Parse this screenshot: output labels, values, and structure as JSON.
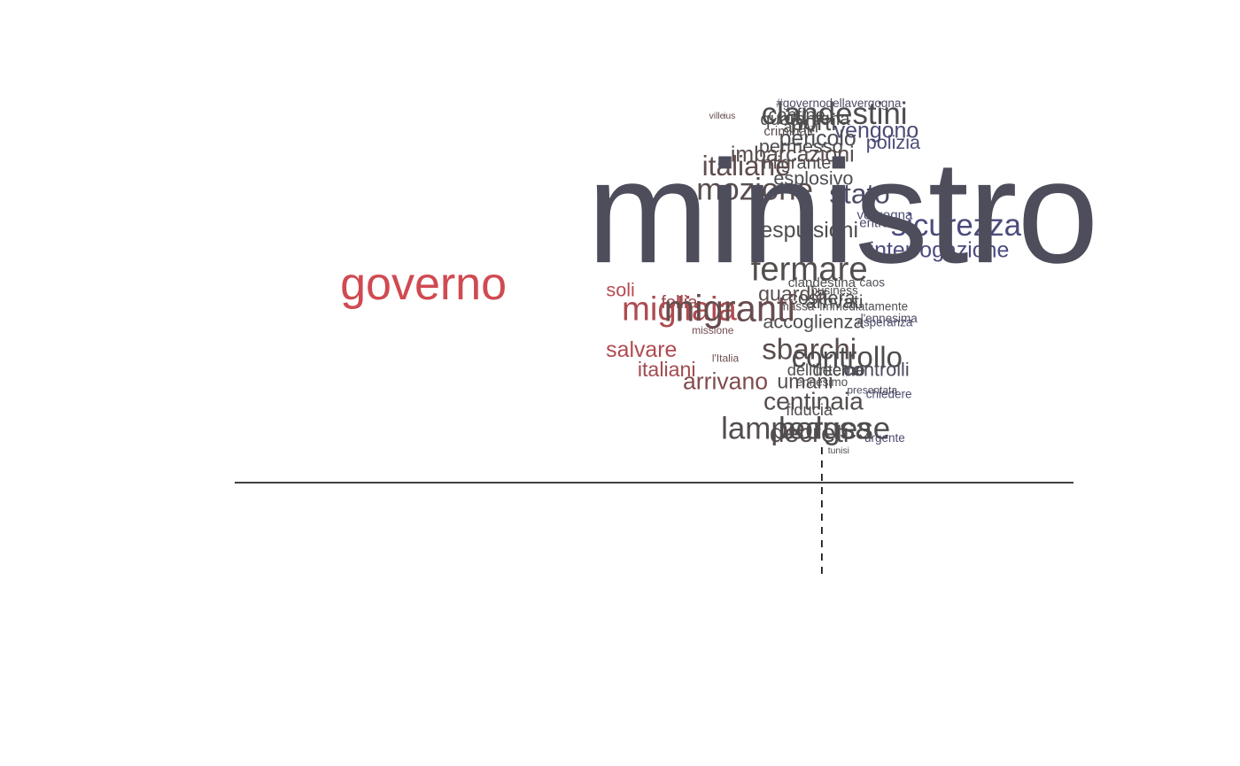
{
  "chart_data": {
    "type": "scatter",
    "subtype": "word-cloud-scatter",
    "title": "",
    "xlabel": "",
    "ylabel": "",
    "xlim": [
      -1,
      1
    ],
    "ylim": [
      -0.3,
      1
    ],
    "grid": false,
    "reference_lines": {
      "horizontal_y": 0,
      "vertical_dashed_x": 0.4
    },
    "color_scale": {
      "low": "#d04a52",
      "mid": "#4d4d4d",
      "high": "#4b4b86"
    },
    "points": [
      {
        "word": "ministro",
        "x": 0.45,
        "y": 0.65,
        "freq": 100,
        "tone": 0.25
      },
      {
        "word": "governo",
        "x": -0.55,
        "y": 0.49,
        "freq": 28,
        "tone": -1
      },
      {
        "word": "clandestini",
        "x": 0.43,
        "y": 0.92,
        "freq": 18,
        "tone": 0.05
      },
      {
        "word": "sicurezza",
        "x": 0.72,
        "y": 0.64,
        "freq": 18,
        "tone": 0.85
      },
      {
        "word": "migranti",
        "x": 0.18,
        "y": 0.43,
        "freq": 22,
        "tone": -0.2
      },
      {
        "word": "migliaia",
        "x": 0.06,
        "y": 0.43,
        "freq": 20,
        "tone": -0.75
      },
      {
        "word": "fermare",
        "x": 0.37,
        "y": 0.53,
        "freq": 20,
        "tone": -0.05
      },
      {
        "word": "sbarchi",
        "x": 0.37,
        "y": 0.33,
        "freq": 17,
        "tone": -0.1
      },
      {
        "word": "controllo",
        "x": 0.46,
        "y": 0.31,
        "freq": 17,
        "tone": 0.05
      },
      {
        "word": "lampedusa",
        "x": 0.34,
        "y": 0.13,
        "freq": 18,
        "tone": -0.05
      },
      {
        "word": "borgese",
        "x": 0.43,
        "y": 0.13,
        "freq": 18,
        "tone": 0.05
      },
      {
        "word": "mozione",
        "x": 0.24,
        "y": 0.73,
        "freq": 18,
        "tone": -0.1
      },
      {
        "word": "italiane",
        "x": 0.22,
        "y": 0.79,
        "freq": 16,
        "tone": -0.15
      },
      {
        "word": "salvare",
        "x": -0.03,
        "y": 0.33,
        "freq": 12,
        "tone": -0.75
      },
      {
        "word": "italiani",
        "x": 0.03,
        "y": 0.28,
        "freq": 11,
        "tone": -0.65
      },
      {
        "word": "interrogazione",
        "x": 0.68,
        "y": 0.58,
        "freq": 12,
        "tone": 0.9
      },
      {
        "word": "vengono",
        "x": 0.53,
        "y": 0.88,
        "freq": 12,
        "tone": 0.7
      },
      {
        "word": "polizia",
        "x": 0.57,
        "y": 0.85,
        "freq": 10,
        "tone": 0.8
      },
      {
        "word": "soli",
        "x": -0.08,
        "y": 0.48,
        "freq": 10,
        "tone": -0.8
      },
      {
        "word": "follia",
        "x": 0.06,
        "y": 0.45,
        "freq": 9,
        "tone": -0.6
      },
      {
        "word": "arrivano",
        "x": 0.17,
        "y": 0.25,
        "freq": 13,
        "tone": -0.4
      },
      {
        "word": "centinaia",
        "x": 0.38,
        "y": 0.2,
        "freq": 14,
        "tone": -0.05
      },
      {
        "word": "decreti",
        "x": 0.37,
        "y": 0.12,
        "freq": 15,
        "tone": -0.05
      },
      {
        "word": "pericolo",
        "x": 0.39,
        "y": 0.86,
        "freq": 12,
        "tone": 0.1
      },
      {
        "word": "porti",
        "x": 0.38,
        "y": 0.9,
        "freq": 13,
        "tone": -0.05
      },
      {
        "word": "quarantena",
        "x": 0.36,
        "y": 0.91,
        "freq": 9,
        "tone": 0
      },
      {
        "word": "confine",
        "x": 0.34,
        "y": 0.92,
        "freq": 9,
        "tone": 0
      },
      {
        "word": "arrivi",
        "x": 0.35,
        "y": 0.89,
        "freq": 8,
        "tone": 0
      },
      {
        "word": "#governodellavergogna",
        "x": 0.44,
        "y": 0.95,
        "freq": 5,
        "tone": 0.4
      },
      {
        "word": "criminali",
        "x": 0.32,
        "y": 0.88,
        "freq": 6,
        "tone": -0.1
      },
      {
        "word": "permesso",
        "x": 0.35,
        "y": 0.84,
        "freq": 10,
        "tone": 0
      },
      {
        "word": "imbarcazioni",
        "x": 0.33,
        "y": 0.82,
        "freq": 12,
        "tone": -0.1
      },
      {
        "word": "migrante",
        "x": 0.34,
        "y": 0.8,
        "freq": 9,
        "tone": 0
      },
      {
        "word": "esplosivo",
        "x": 0.38,
        "y": 0.76,
        "freq": 10,
        "tone": 0.1
      },
      {
        "word": "stato",
        "x": 0.49,
        "y": 0.72,
        "freq": 16,
        "tone": 0.45
      },
      {
        "word": "espulsioni",
        "x": 0.37,
        "y": 0.63,
        "freq": 12,
        "tone": 0
      },
      {
        "word": "vergogna",
        "x": 0.55,
        "y": 0.67,
        "freq": 6,
        "tone": 0.7
      },
      {
        "word": "entrare",
        "x": 0.54,
        "y": 0.65,
        "freq": 6,
        "tone": 0.6
      },
      {
        "word": "clandestina",
        "x": 0.4,
        "y": 0.5,
        "freq": 6,
        "tone": 0
      },
      {
        "word": "caos",
        "x": 0.52,
        "y": 0.5,
        "freq": 5,
        "tone": 0.2
      },
      {
        "word": "business",
        "x": 0.43,
        "y": 0.48,
        "freq": 5,
        "tone": 0.05
      },
      {
        "word": "guardia",
        "x": 0.33,
        "y": 0.47,
        "freq": 11,
        "tone": -0.1
      },
      {
        "word": "costiera",
        "x": 0.4,
        "y": 0.46,
        "freq": 10,
        "tone": 0
      },
      {
        "word": "arrivati",
        "x": 0.43,
        "y": 0.45,
        "freq": 10,
        "tone": 0
      },
      {
        "word": "immediatamente",
        "x": 0.5,
        "y": 0.44,
        "freq": 5,
        "tone": 0.1
      },
      {
        "word": "massa",
        "x": 0.34,
        "y": 0.44,
        "freq": 5,
        "tone": -0.05
      },
      {
        "word": "accoglienza",
        "x": 0.38,
        "y": 0.4,
        "freq": 10,
        "tone": 0
      },
      {
        "word": "l'ennesima",
        "x": 0.56,
        "y": 0.41,
        "freq": 5,
        "tone": 0.4
      },
      {
        "word": "#speranza",
        "x": 0.55,
        "y": 0.4,
        "freq": 5,
        "tone": 0.5
      },
      {
        "word": "missione",
        "x": 0.14,
        "y": 0.38,
        "freq": 4,
        "tone": -0.3
      },
      {
        "word": "l'Italia",
        "x": 0.17,
        "y": 0.31,
        "freq": 4,
        "tone": -0.25
      },
      {
        "word": "dell'interno",
        "x": 0.41,
        "y": 0.28,
        "freq": 8,
        "tone": 0
      },
      {
        "word": "decine",
        "x": 0.44,
        "y": 0.28,
        "freq": 9,
        "tone": 0.05
      },
      {
        "word": "controlli",
        "x": 0.53,
        "y": 0.28,
        "freq": 10,
        "tone": 0.3
      },
      {
        "word": "umani",
        "x": 0.36,
        "y": 0.25,
        "freq": 11,
        "tone": -0.05
      },
      {
        "word": "ennesimo",
        "x": 0.4,
        "y": 0.25,
        "freq": 5,
        "tone": 0
      },
      {
        "word": "presentata",
        "x": 0.52,
        "y": 0.23,
        "freq": 4,
        "tone": 0.3
      },
      {
        "word": "chiedere",
        "x": 0.56,
        "y": 0.22,
        "freq": 5,
        "tone": 0.6
      },
      {
        "word": "fiducia",
        "x": 0.37,
        "y": 0.18,
        "freq": 8,
        "tone": -0.05
      },
      {
        "word": "urgente",
        "x": 0.55,
        "y": 0.11,
        "freq": 5,
        "tone": 0.6
      },
      {
        "word": "tunisi",
        "x": 0.44,
        "y": 0.08,
        "freq": 3,
        "tone": 0.1
      },
      {
        "word": "ville",
        "x": 0.15,
        "y": 0.92,
        "freq": 3,
        "tone": -0.2
      },
      {
        "word": "ius",
        "x": 0.18,
        "y": 0.92,
        "freq": 3,
        "tone": -0.2
      }
    ]
  }
}
